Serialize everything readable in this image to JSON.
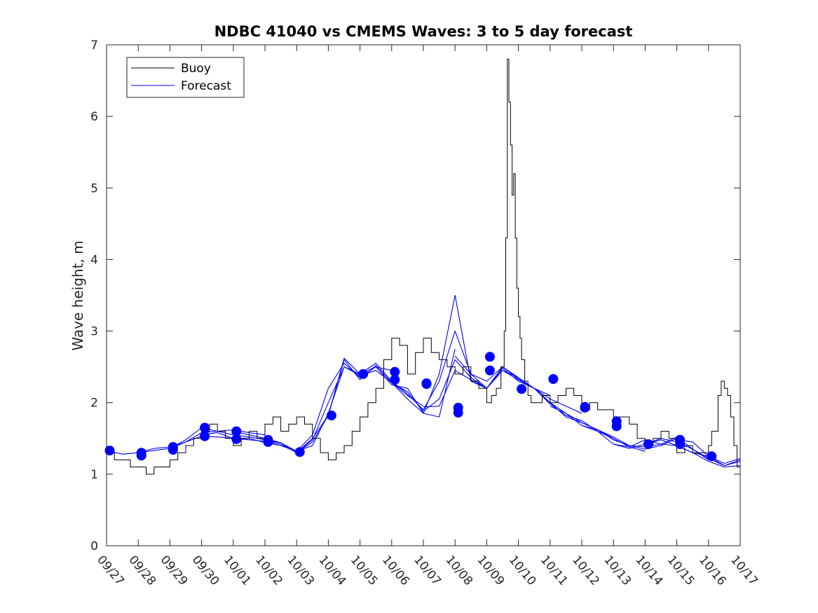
{
  "chart_data": {
    "type": "line",
    "title": "NDBC 41040 vs CMEMS Waves: 3 to 5 day forecast",
    "xlabel": "",
    "ylabel": "Wave height, m",
    "xlim": [
      "09/27",
      "10/17"
    ],
    "ylim": [
      0,
      7
    ],
    "x_ticks": [
      "09/27",
      "09/28",
      "09/29",
      "09/30",
      "10/01",
      "10/02",
      "10/03",
      "10/04",
      "10/05",
      "10/06",
      "10/07",
      "10/08",
      "10/09",
      "10/10",
      "10/11",
      "10/12",
      "10/13",
      "10/14",
      "10/15",
      "10/16",
      "10/17"
    ],
    "y_ticks": [
      0,
      1,
      2,
      3,
      4,
      5,
      6,
      7
    ],
    "grid": false,
    "legend_position": "top-left",
    "colors": {
      "buoy": "#000000",
      "forecast": "#0000ff",
      "axes": "#262626"
    },
    "series": [
      {
        "name": "Buoy",
        "style": "step-line",
        "x_day": [
          0,
          0.25,
          0.5,
          0.75,
          1,
          1.25,
          1.5,
          1.75,
          2,
          2.25,
          2.5,
          2.75,
          3,
          3.25,
          3.5,
          3.75,
          4,
          4.25,
          4.5,
          4.75,
          5,
          5.25,
          5.5,
          5.75,
          6,
          6.25,
          6.5,
          6.75,
          7,
          7.25,
          7.5,
          7.75,
          8,
          8.25,
          8.5,
          8.75,
          9,
          9.25,
          9.5,
          9.75,
          10,
          10.25,
          10.5,
          10.75,
          11,
          11.25,
          11.5,
          11.75,
          12,
          12.15,
          12.3,
          12.45,
          12.55,
          12.6,
          12.65,
          12.7,
          12.75,
          12.8,
          12.85,
          12.9,
          12.95,
          13,
          13.05,
          13.1,
          13.2,
          13.3,
          13.4,
          13.5,
          13.75,
          14,
          14.25,
          14.5,
          14.75,
          15,
          15.25,
          15.5,
          15.75,
          16,
          16.25,
          16.5,
          16.75,
          17,
          17.25,
          17.5,
          17.75,
          18,
          18.25,
          18.5,
          18.75,
          19,
          19.1,
          19.3,
          19.4,
          19.5,
          19.6,
          19.7,
          19.8,
          19.9,
          20
        ],
        "values": [
          1.3,
          1.2,
          1.2,
          1.1,
          1.1,
          1.0,
          1.1,
          1.1,
          1.2,
          1.3,
          1.4,
          1.5,
          1.6,
          1.7,
          1.6,
          1.5,
          1.4,
          1.5,
          1.6,
          1.5,
          1.7,
          1.8,
          1.6,
          1.7,
          1.8,
          1.7,
          1.5,
          1.3,
          1.2,
          1.3,
          1.4,
          1.6,
          1.8,
          2.0,
          2.2,
          2.6,
          2.9,
          2.8,
          2.4,
          2.7,
          2.9,
          2.7,
          2.6,
          2.5,
          2.4,
          2.5,
          2.3,
          2.2,
          2.0,
          2.1,
          2.2,
          2.5,
          3.0,
          4.3,
          6.8,
          6.2,
          5.6,
          4.9,
          5.2,
          4.3,
          3.6,
          3.2,
          2.9,
          2.6,
          2.3,
          2.1,
          2.0,
          2.0,
          2.1,
          2.0,
          2.1,
          2.2,
          2.1,
          1.9,
          2.0,
          1.9,
          1.9,
          1.8,
          1.8,
          1.7,
          1.5,
          1.4,
          1.5,
          1.6,
          1.5,
          1.3,
          1.4,
          1.3,
          1.3,
          1.4,
          1.6,
          2.1,
          2.3,
          2.2,
          2.1,
          1.8,
          1.4,
          1.1,
          1.1
        ]
      },
      {
        "name": "Forecast",
        "style": "lines-with-markers",
        "runs": [
          {
            "x_day": [
              0,
              0.5,
              1,
              1.5,
              2,
              2.5,
              3,
              3.5,
              4,
              4.5,
              5
            ],
            "values": [
              1.33,
              1.28,
              1.3,
              1.33,
              1.36,
              1.45,
              1.58,
              1.6,
              1.62,
              1.58,
              1.55
            ]
          },
          {
            "x_day": [
              1,
              1.5,
              2,
              2.5,
              3,
              3.5,
              4,
              4.5,
              5,
              5.5,
              6
            ],
            "values": [
              1.3,
              1.36,
              1.38,
              1.45,
              1.53,
              1.52,
              1.5,
              1.48,
              1.46,
              1.4,
              1.32
            ]
          },
          {
            "x_day": [
              2,
              2.5,
              3,
              3.5,
              4,
              4.5,
              5,
              5.5,
              6,
              6.5,
              7
            ],
            "values": [
              1.36,
              1.48,
              1.65,
              1.6,
              1.55,
              1.52,
              1.48,
              1.44,
              1.3,
              1.5,
              1.82
            ]
          },
          {
            "x_day": [
              3,
              3.5,
              4,
              4.5,
              5,
              5.5,
              6,
              6.5,
              7,
              7.5,
              8
            ],
            "values": [
              1.55,
              1.58,
              1.5,
              1.5,
              1.44,
              1.4,
              1.32,
              1.4,
              1.85,
              2.5,
              2.4
            ]
          },
          {
            "x_day": [
              4,
              4.5,
              5,
              5.5,
              6,
              6.5,
              7,
              7.5,
              8,
              8.5,
              9
            ],
            "values": [
              1.6,
              1.55,
              1.5,
              1.44,
              1.32,
              1.55,
              2.2,
              2.55,
              2.35,
              2.5,
              2.45
            ]
          },
          {
            "x_day": [
              5,
              5.5,
              6,
              6.5,
              7,
              7.5,
              8,
              8.5,
              9,
              9.5,
              10
            ],
            "values": [
              1.48,
              1.42,
              1.3,
              1.48,
              2.0,
              2.5,
              2.38,
              2.45,
              2.28,
              2.1,
              1.95
            ]
          },
          {
            "x_day": [
              6,
              6.5,
              7,
              7.5,
              8,
              8.5,
              9,
              9.5,
              10,
              10.5,
              11
            ],
            "values": [
              1.3,
              1.45,
              1.82,
              2.62,
              2.4,
              2.5,
              2.25,
              2.2,
              1.85,
              1.8,
              2.75
            ]
          },
          {
            "x_day": [
              7,
              7.5,
              8,
              8.5,
              9,
              9.5,
              10,
              10.5,
              11,
              11.5,
              12
            ],
            "values": [
              1.82,
              2.6,
              2.32,
              2.52,
              2.28,
              2.05,
              1.85,
              2.4,
              3.5,
              2.3,
              2.2
            ]
          },
          {
            "x_day": [
              8,
              8.5,
              9,
              9.5,
              10,
              10.5,
              11,
              11.5,
              12,
              12.5,
              13
            ],
            "values": [
              2.4,
              2.55,
              2.3,
              2.12,
              1.9,
              2.3,
              3.0,
              2.4,
              2.3,
              2.5,
              2.35
            ]
          },
          {
            "x_day": [
              9,
              9.5,
              10,
              10.5,
              11,
              11.5,
              12,
              12.5,
              13,
              13.5,
              14
            ],
            "values": [
              2.28,
              2.15,
              1.88,
              2.05,
              2.6,
              2.35,
              2.2,
              2.45,
              2.32,
              2.2,
              2.1
            ]
          },
          {
            "x_day": [
              10,
              10.5,
              11,
              11.5,
              12,
              12.5,
              13,
              13.5,
              14,
              14.5,
              15
            ],
            "values": [
              1.94,
              1.95,
              2.45,
              2.32,
              2.2,
              2.5,
              2.33,
              2.2,
              2.05,
              1.95,
              1.85
            ]
          },
          {
            "x_day": [
              11,
              11.5,
              12,
              12.5,
              13,
              13.5,
              14,
              14.5,
              15,
              15.5,
              16
            ],
            "values": [
              2.65,
              2.4,
              2.2,
              2.45,
              2.35,
              2.2,
              2.0,
              1.8,
              1.72,
              1.62,
              1.5
            ]
          },
          {
            "x_day": [
              12,
              12.5,
              13,
              13.5,
              14,
              14.5,
              15,
              15.5,
              16,
              16.5,
              17
            ],
            "values": [
              2.2,
              2.48,
              2.3,
              2.2,
              1.98,
              1.82,
              1.75,
              1.6,
              1.5,
              1.38,
              1.32
            ]
          },
          {
            "x_day": [
              13,
              13.5,
              14,
              14.5,
              15,
              15.5,
              16,
              16.5,
              17,
              17.5,
              18
            ],
            "values": [
              2.33,
              2.2,
              2.0,
              1.85,
              1.72,
              1.62,
              1.48,
              1.4,
              1.35,
              1.4,
              1.5
            ]
          },
          {
            "x_day": [
              14,
              14.5,
              15,
              15.5,
              16,
              16.5,
              17,
              17.5,
              18,
              18.5,
              19
            ],
            "values": [
              1.95,
              1.85,
              1.68,
              1.62,
              1.52,
              1.4,
              1.38,
              1.42,
              1.52,
              1.35,
              1.2
            ]
          },
          {
            "x_day": [
              15,
              15.5,
              16,
              16.5,
              17,
              17.5,
              18,
              18.5,
              19,
              19.5,
              20
            ],
            "values": [
              1.68,
              1.6,
              1.42,
              1.38,
              1.48,
              1.42,
              1.4,
              1.3,
              1.18,
              1.1,
              1.12
            ]
          },
          {
            "x_day": [
              16,
              16.5,
              17,
              17.5,
              18,
              18.5,
              19,
              19.5,
              20
            ],
            "values": [
              1.42,
              1.36,
              1.42,
              1.5,
              1.45,
              1.35,
              1.22,
              1.12,
              1.18
            ]
          },
          {
            "x_day": [
              17,
              17.5,
              18,
              18.5,
              19,
              19.5,
              20
            ],
            "values": [
              1.42,
              1.48,
              1.4,
              1.3,
              1.25,
              1.12,
              1.2
            ]
          },
          {
            "x_day": [
              18,
              18.5,
              19,
              19.5,
              20
            ],
            "values": [
              1.48,
              1.45,
              1.25,
              1.15,
              1.22
            ]
          }
        ],
        "markers": {
          "x_day": [
            0.1,
            1.1,
            1.1,
            2.1,
            2.1,
            3.1,
            3.1,
            4.1,
            4.1,
            5.1,
            5.1,
            6.1,
            7.1,
            8.1,
            9.1,
            9.1,
            10.1,
            10.1,
            11.1,
            11.1,
            12.1,
            12.1,
            13.1,
            14.1,
            15.1,
            15.1,
            16.1,
            16.1,
            17.1,
            18.1,
            18.1,
            19.1
          ],
          "values": [
            1.33,
            1.3,
            1.26,
            1.38,
            1.34,
            1.65,
            1.53,
            1.6,
            1.49,
            1.48,
            1.45,
            1.31,
            1.82,
            2.4,
            2.43,
            2.32,
            2.26,
            2.27,
            1.93,
            1.86,
            2.64,
            2.45,
            2.19,
            2.33,
            1.94,
            1.93,
            1.74,
            1.67,
            1.42,
            1.48,
            1.42,
            1.25
          ]
        }
      }
    ]
  }
}
